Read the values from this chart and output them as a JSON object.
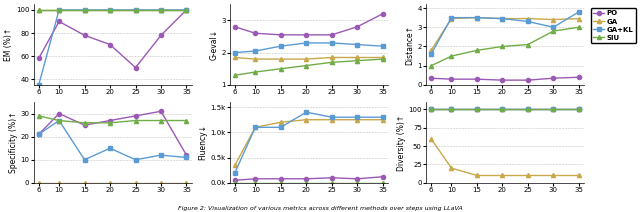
{
  "x": [
    6,
    10,
    15,
    20,
    25,
    30,
    35
  ],
  "colors": {
    "PO": "#9b59b6",
    "GA": "#c8a84b",
    "GA+KL": "#5b9bd5",
    "SIU": "#70ad47"
  },
  "markers": {
    "PO": "o",
    "GA": "^",
    "GA+KL": "s",
    "SIU": "^"
  },
  "EM": {
    "PO": [
      58,
      90,
      78,
      70,
      50,
      78,
      100
    ],
    "GA": [
      100,
      100,
      100,
      100,
      100,
      100,
      100
    ],
    "GA+KL": [
      35,
      100,
      100,
      100,
      100,
      100,
      100
    ],
    "SIU": [
      100,
      100,
      100,
      100,
      100,
      100,
      100
    ]
  },
  "Geval": {
    "PO": [
      2.8,
      2.6,
      2.55,
      2.55,
      2.55,
      2.8,
      3.2
    ],
    "GA": [
      1.85,
      1.8,
      1.8,
      1.8,
      1.85,
      1.85,
      1.85
    ],
    "GA+KL": [
      2.0,
      2.05,
      2.2,
      2.3,
      2.3,
      2.25,
      2.2
    ],
    "SIU": [
      1.3,
      1.4,
      1.5,
      1.6,
      1.7,
      1.75,
      1.8
    ]
  },
  "Distance": {
    "PO": [
      0.35,
      0.3,
      0.3,
      0.25,
      0.25,
      0.35,
      0.4
    ],
    "GA": [
      1.8,
      3.45,
      3.5,
      3.45,
      3.45,
      3.4,
      3.45
    ],
    "GA+KL": [
      1.6,
      3.5,
      3.5,
      3.45,
      3.3,
      3.0,
      3.8
    ],
    "SIU": [
      1.0,
      1.5,
      1.8,
      2.0,
      2.1,
      2.8,
      3.0
    ]
  },
  "Specificity": {
    "PO": [
      21,
      30,
      25,
      27,
      29,
      31,
      12
    ],
    "GA": [
      0,
      0,
      0,
      0,
      0,
      0,
      0
    ],
    "GA+KL": [
      21,
      27,
      10,
      15,
      10,
      12,
      11
    ],
    "SIU": [
      29,
      27,
      26,
      26,
      27,
      27,
      27
    ]
  },
  "Fluency": {
    "PO": [
      0.05,
      0.08,
      0.08,
      0.08,
      0.1,
      0.08,
      0.12
    ],
    "GA": [
      0.35,
      1.1,
      1.2,
      1.25,
      1.25,
      1.25,
      1.25
    ],
    "GA+KL": [
      0.2,
      1.1,
      1.1,
      1.4,
      1.3,
      1.3,
      1.3
    ],
    "SIU": [
      0.0,
      0.0,
      0.0,
      0.0,
      0.0,
      0.0,
      0.0
    ]
  },
  "Diversity": {
    "PO": [
      100,
      100,
      100,
      100,
      100,
      100,
      100
    ],
    "GA": [
      60,
      20,
      10,
      10,
      10,
      10,
      10
    ],
    "GA+KL": [
      100,
      100,
      100,
      100,
      100,
      100,
      100
    ],
    "SIU": [
      100,
      100,
      100,
      100,
      100,
      100,
      100
    ]
  },
  "figure_caption": "Figure 2: Visualization of various metrics across different methods over steps using LLaVA"
}
